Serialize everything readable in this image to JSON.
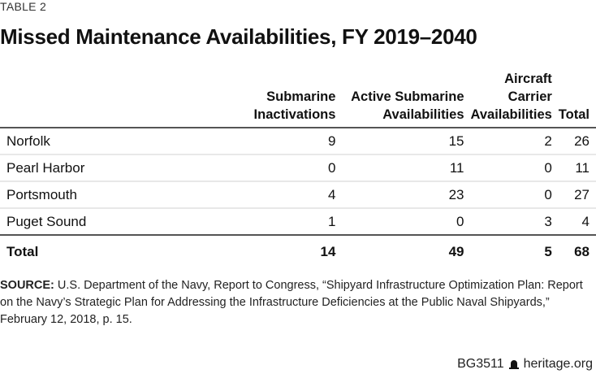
{
  "table_label": "TABLE 2",
  "title": "Missed Maintenance Availabilities, FY 2019–2040",
  "table": {
    "headers": [
      {
        "line1": "",
        "line2": ""
      },
      {
        "line1": "Submarine",
        "line2": "Inactivations"
      },
      {
        "line1": "Active Submarine",
        "line2": "Availabilities"
      },
      {
        "line1": "Aircraft Carrier",
        "line2": "Availabilities"
      },
      {
        "line1": "",
        "line2": "Total"
      }
    ],
    "rows": [
      {
        "name": "Norfolk",
        "sub_inact": "9",
        "active_sub": "15",
        "carrier": "2",
        "total": "26"
      },
      {
        "name": "Pearl Harbor",
        "sub_inact": "0",
        "active_sub": "11",
        "carrier": "0",
        "total": "11"
      },
      {
        "name": "Portsmouth",
        "sub_inact": "4",
        "active_sub": "23",
        "carrier": "0",
        "total": "27"
      },
      {
        "name": "Puget Sound",
        "sub_inact": "1",
        "active_sub": "0",
        "carrier": "3",
        "total": "4"
      }
    ],
    "total_row": {
      "name": "Total",
      "sub_inact": "14",
      "active_sub": "49",
      "carrier": "5",
      "total": "68"
    }
  },
  "source": {
    "label": "SOURCE:",
    "text": " U.S. Department of the Navy, Report to Congress, “Shipyard Infrastructure Optimization Plan: Report on the Navy’s Strategic Plan for Addressing the Infrastructure Deficiencies at the Public Naval Shipyards,” February 12, 2018, p. 15."
  },
  "footer": {
    "code": "BG3511",
    "icon": "liberty-bell-icon",
    "site": "heritage.org"
  }
}
